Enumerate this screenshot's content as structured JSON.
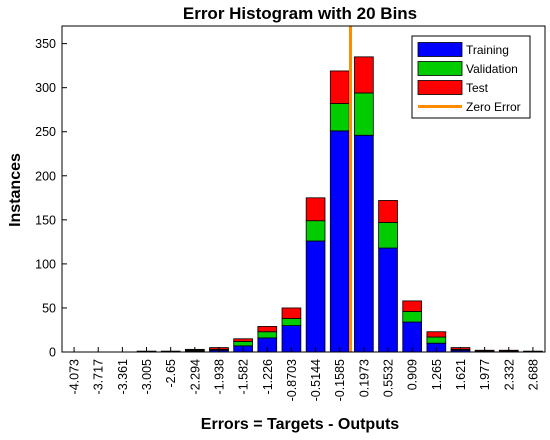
{
  "chart_data": {
    "type": "bar",
    "stacked": true,
    "title": "Error Histogram with 20 Bins",
    "xlabel": "Errors = Targets - Outputs",
    "ylabel": "Instances",
    "ylim": [
      0,
      370
    ],
    "yticks": [
      0,
      50,
      100,
      150,
      200,
      250,
      300,
      350
    ],
    "categories": [
      "-4.073",
      "-3.717",
      "-3.361",
      "-3.005",
      "-2.65",
      "-2.294",
      "-1.938",
      "-1.582",
      "-1.226",
      "-0.8703",
      "-0.5144",
      "-0.1585",
      "0.1973",
      "0.5532",
      "0.909",
      "1.265",
      "1.621",
      "1.977",
      "2.332",
      "2.688"
    ],
    "series": [
      {
        "name": "Training",
        "color": "#0000ff",
        "values": [
          0,
          0,
          0,
          0,
          1,
          1,
          2,
          7,
          16,
          30,
          126,
          251,
          246,
          118,
          34,
          10,
          2,
          1,
          1,
          0
        ]
      },
      {
        "name": "Validation",
        "color": "#00cc00",
        "values": [
          0,
          0,
          0,
          0,
          0,
          1,
          1,
          5,
          7,
          8,
          23,
          31,
          48,
          29,
          12,
          7,
          1,
          0,
          0,
          0
        ]
      },
      {
        "name": "Test",
        "color": "#ff0000",
        "values": [
          0,
          0,
          0,
          1,
          0,
          1,
          2,
          3,
          6,
          12,
          26,
          37,
          41,
          25,
          12,
          6,
          2,
          1,
          1,
          1
        ]
      }
    ],
    "zero_error": {
      "name": "Zero Error",
      "x": 0,
      "color": "#ff8c00"
    },
    "legend": {
      "position": "top-right",
      "entries": [
        "Training",
        "Validation",
        "Test",
        "Zero Error"
      ]
    },
    "grid": false
  }
}
